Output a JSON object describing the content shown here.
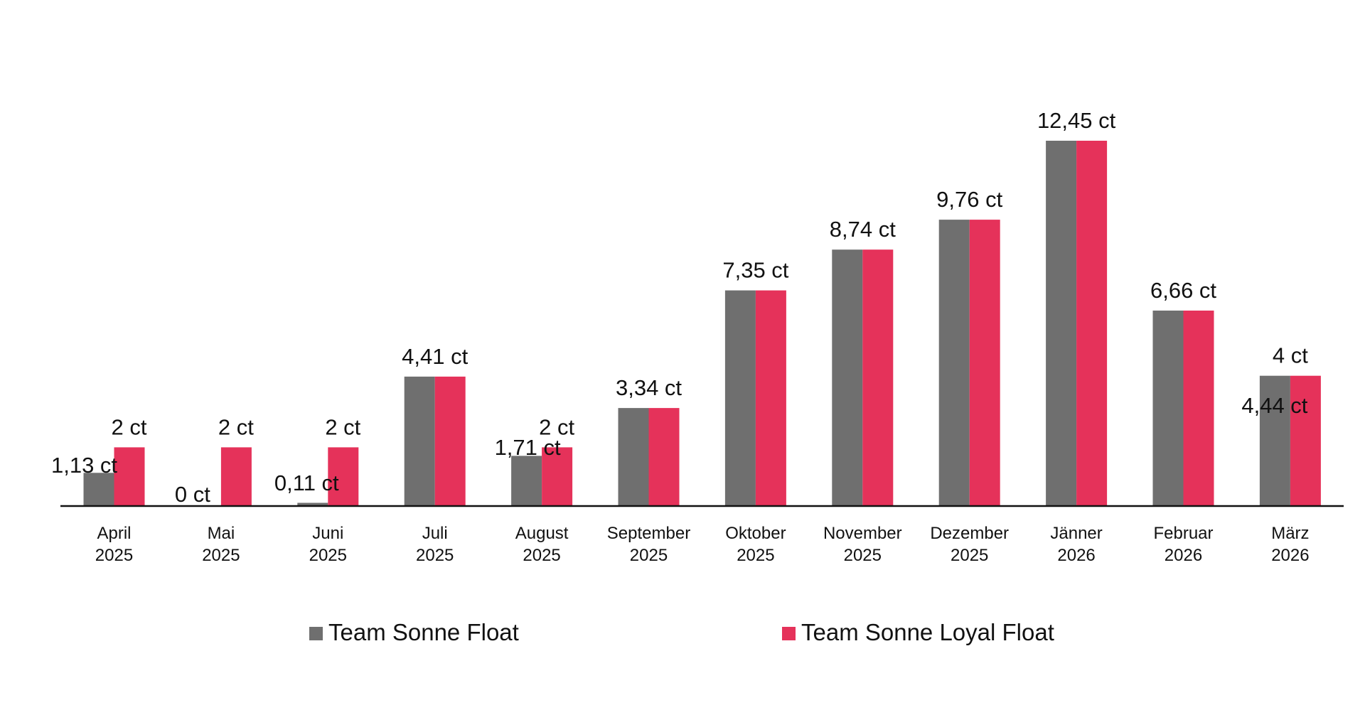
{
  "chart_data": {
    "type": "bar",
    "title": "",
    "xlabel": "",
    "ylabel": "",
    "grid": false,
    "legend_position": "bottom",
    "ylim": [
      0,
      12.45
    ],
    "categories": [
      {
        "month": "April",
        "year": "2025"
      },
      {
        "month": "Mai",
        "year": "2025"
      },
      {
        "month": "Juni",
        "year": "2025"
      },
      {
        "month": "Juli",
        "year": "2025"
      },
      {
        "month": "August",
        "year": "2025"
      },
      {
        "month": "September",
        "year": "2025"
      },
      {
        "month": "Oktober",
        "year": "2025"
      },
      {
        "month": "November",
        "year": "2025"
      },
      {
        "month": "Dezember",
        "year": "2025"
      },
      {
        "month": "Jänner",
        "year": "2026"
      },
      {
        "month": "Februar",
        "year": "2026"
      },
      {
        "month": "März",
        "year": "2026"
      }
    ],
    "series": [
      {
        "name": "Team Sonne Float",
        "color": "#6f6f6f",
        "values": [
          1.13,
          0,
          0.11,
          4.41,
          1.71,
          3.34,
          7.35,
          8.74,
          9.76,
          12.45,
          6.66,
          4.44
        ],
        "labels": [
          "1,13 ct",
          "0 ct",
          "0,11 ct",
          null,
          "1,71 ct",
          null,
          null,
          null,
          null,
          null,
          null,
          "4,44 ct"
        ]
      },
      {
        "name": "Team Sonne Loyal Float",
        "color": "#e5325a",
        "values": [
          2,
          2,
          2,
          4.41,
          2,
          3.34,
          7.35,
          8.74,
          9.76,
          12.45,
          6.66,
          4.44
        ],
        "labels": [
          "2 ct",
          "2 ct",
          "2 ct",
          "4,41 ct",
          "2 ct",
          "3,34 ct",
          "7,35 ct",
          "8,74 ct",
          "9,76 ct",
          "12,45 ct",
          "6,66 ct",
          "4 ct"
        ]
      }
    ]
  }
}
